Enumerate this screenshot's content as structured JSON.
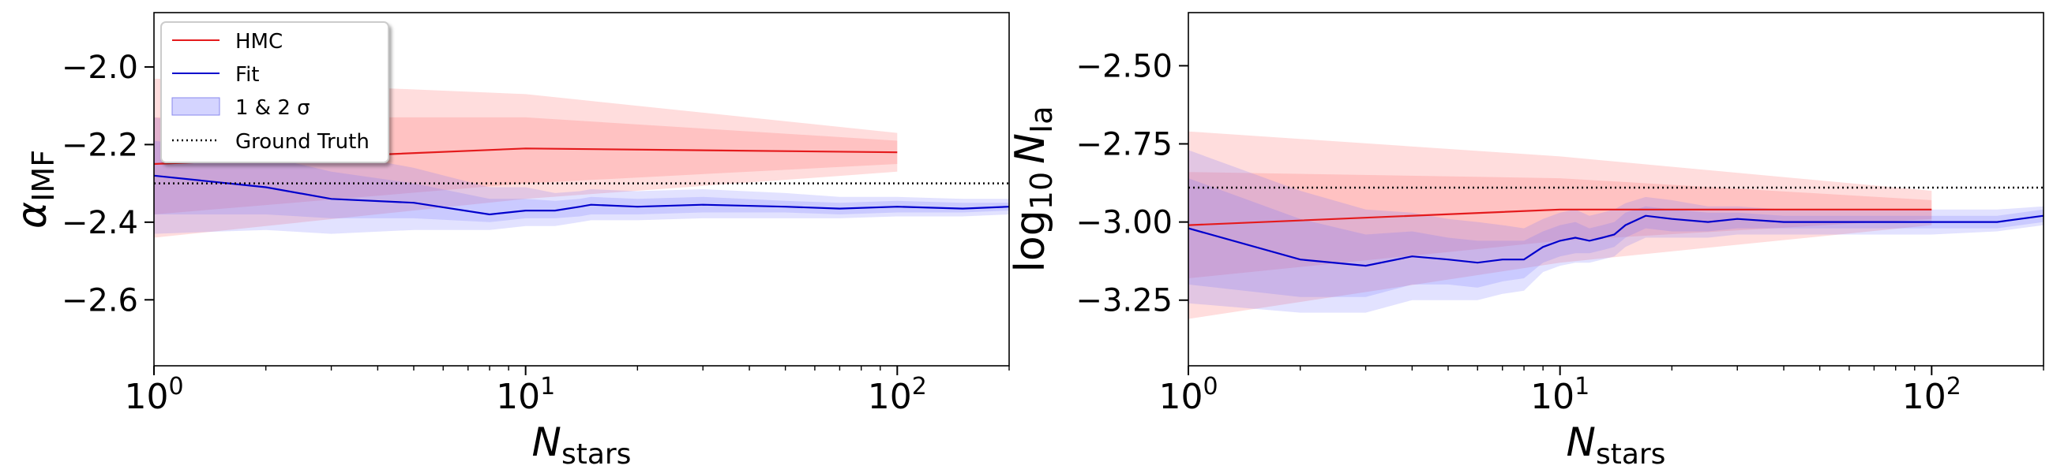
{
  "chart_data": [
    {
      "type": "line",
      "x_scale": "log",
      "xlim": [
        1,
        200
      ],
      "ylim": [
        -2.77,
        -1.86
      ],
      "xlabel": "N",
      "xlabel_sub": "stars",
      "ylabel": "α",
      "ylabel_sub": "IMF",
      "x_ticks": [
        1,
        10,
        100
      ],
      "x_tick_exponents": [
        "0",
        "1",
        "2"
      ],
      "y_ticks": [
        -2.0,
        -2.2,
        -2.4,
        -2.6
      ],
      "y_tick_labels": [
        "−2.0",
        "−2.2",
        "−2.4",
        "−2.6"
      ],
      "grid": false,
      "legend": {
        "placement": "top-left",
        "entries": [
          {
            "label": "HMC",
            "kind": "line",
            "color": "#e41a1c"
          },
          {
            "label": "Fit",
            "kind": "line",
            "color": "#0000cc"
          },
          {
            "label": "1 & 2 σ",
            "kind": "patch",
            "color": "#aaaaff"
          },
          {
            "label": "Ground Truth",
            "kind": "dotted",
            "color": "#000000"
          }
        ]
      },
      "ground_truth": -2.3,
      "series": [
        {
          "name": "HMC",
          "color": "#e41a1c",
          "x": [
            1,
            10,
            100
          ],
          "y": [
            -2.25,
            -2.21,
            -2.22
          ],
          "band1": {
            "lo": [
              -2.38,
              -2.3,
              -2.25
            ],
            "hi": [
              -2.13,
              -2.13,
              -2.19
            ]
          },
          "band2": {
            "lo": [
              -2.44,
              -2.34,
              -2.27
            ],
            "hi": [
              -2.03,
              -2.07,
              -2.17
            ]
          }
        },
        {
          "name": "Fit",
          "color": "#0000cc",
          "x": [
            1,
            2,
            3,
            5,
            8,
            10,
            12,
            14,
            15,
            20,
            30,
            50,
            70,
            100,
            150,
            200
          ],
          "y": [
            -2.28,
            -2.31,
            -2.34,
            -2.35,
            -2.38,
            -2.37,
            -2.37,
            -2.36,
            -2.355,
            -2.36,
            -2.355,
            -2.36,
            -2.365,
            -2.36,
            -2.365,
            -2.36
          ],
          "band1": {
            "lo": [
              -2.38,
              -2.38,
              -2.39,
              -2.39,
              -2.4,
              -2.39,
              -2.39,
              -2.385,
              -2.38,
              -2.38,
              -2.375,
              -2.375,
              -2.38,
              -2.375,
              -2.375,
              -2.37
            ],
            "hi": [
              -2.19,
              -2.23,
              -2.27,
              -2.3,
              -2.34,
              -2.34,
              -2.345,
              -2.34,
              -2.335,
              -2.34,
              -2.335,
              -2.345,
              -2.35,
              -2.345,
              -2.35,
              -2.35
            ]
          },
          "band2": {
            "lo": [
              -2.43,
              -2.42,
              -2.43,
              -2.42,
              -2.42,
              -2.41,
              -2.41,
              -2.4,
              -2.395,
              -2.395,
              -2.39,
              -2.39,
              -2.39,
              -2.385,
              -2.385,
              -2.38
            ],
            "hi": [
              -2.13,
              -2.17,
              -2.22,
              -2.26,
              -2.31,
              -2.31,
              -2.325,
              -2.32,
              -2.315,
              -2.32,
              -2.315,
              -2.325,
              -2.335,
              -2.335,
              -2.34,
              -2.34
            ]
          }
        }
      ]
    },
    {
      "type": "line",
      "x_scale": "log",
      "xlim": [
        1,
        200
      ],
      "ylim": [
        -3.46,
        -2.33
      ],
      "xlabel": "N",
      "xlabel_sub": "stars",
      "ylabel": "log",
      "ylabel_log_base": "10",
      "ylabel_var": "N",
      "ylabel_sub": "Ia",
      "x_ticks": [
        1,
        10,
        100
      ],
      "x_tick_exponents": [
        "0",
        "1",
        "2"
      ],
      "y_ticks": [
        -2.5,
        -2.75,
        -3.0,
        -3.25
      ],
      "y_tick_labels": [
        "−2.50",
        "−2.75",
        "−3.00",
        "−3.25"
      ],
      "grid": false,
      "ground_truth": -2.89,
      "series": [
        {
          "name": "HMC",
          "color": "#e41a1c",
          "x": [
            1,
            10,
            100
          ],
          "y": [
            -3.01,
            -2.96,
            -2.96
          ],
          "band1": {
            "lo": [
              -3.18,
              -3.06,
              -2.99
            ],
            "hi": [
              -2.84,
              -2.86,
              -2.93
            ]
          },
          "band2": {
            "lo": [
              -3.31,
              -3.13,
              -3.01
            ],
            "hi": [
              -2.71,
              -2.79,
              -2.9
            ]
          }
        },
        {
          "name": "Fit",
          "color": "#0000cc",
          "x": [
            1,
            2,
            3,
            4,
            5,
            6,
            7,
            8,
            9,
            10,
            11,
            12,
            13,
            14,
            15,
            17,
            20,
            25,
            30,
            40,
            50,
            70,
            100,
            150,
            200
          ],
          "y": [
            -3.02,
            -3.12,
            -3.14,
            -3.11,
            -3.12,
            -3.13,
            -3.12,
            -3.12,
            -3.08,
            -3.06,
            -3.05,
            -3.06,
            -3.05,
            -3.04,
            -3.01,
            -2.98,
            -2.99,
            -3.0,
            -2.99,
            -3.0,
            -3.0,
            -3.0,
            -3.0,
            -3.0,
            -2.98
          ],
          "band1": {
            "lo": [
              -3.2,
              -3.24,
              -3.24,
              -3.2,
              -3.2,
              -3.21,
              -3.19,
              -3.18,
              -3.13,
              -3.11,
              -3.1,
              -3.1,
              -3.09,
              -3.08,
              -3.05,
              -3.02,
              -3.03,
              -3.03,
              -3.02,
              -3.02,
              -3.02,
              -3.02,
              -3.02,
              -3.02,
              -3.0
            ],
            "hi": [
              -2.86,
              -2.99,
              -3.04,
              -3.03,
              -3.05,
              -3.06,
              -3.06,
              -3.06,
              -3.03,
              -3.01,
              -3.0,
              -3.02,
              -3.01,
              -3.0,
              -2.97,
              -2.95,
              -2.96,
              -2.97,
              -2.97,
              -2.98,
              -2.98,
              -2.98,
              -2.98,
              -2.98,
              -2.96
            ]
          },
          "band2": {
            "lo": [
              -3.26,
              -3.29,
              -3.29,
              -3.25,
              -3.25,
              -3.25,
              -3.23,
              -3.22,
              -3.16,
              -3.14,
              -3.13,
              -3.13,
              -3.12,
              -3.11,
              -3.08,
              -3.05,
              -3.05,
              -3.05,
              -3.04,
              -3.04,
              -3.04,
              -3.04,
              -3.04,
              -3.03,
              -3.01
            ],
            "hi": [
              -2.77,
              -2.9,
              -2.96,
              -2.97,
              -2.99,
              -3.0,
              -3.01,
              -3.02,
              -2.99,
              -2.97,
              -2.96,
              -2.98,
              -2.97,
              -2.96,
              -2.94,
              -2.92,
              -2.93,
              -2.95,
              -2.95,
              -2.96,
              -2.96,
              -2.96,
              -2.96,
              -2.96,
              -2.95
            ]
          }
        }
      ]
    }
  ]
}
